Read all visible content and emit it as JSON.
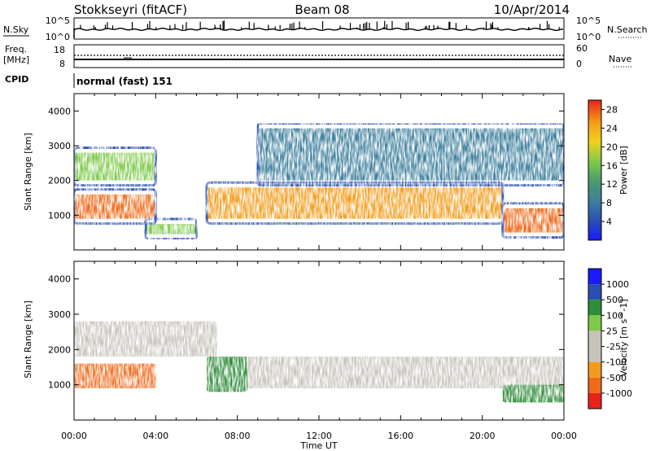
{
  "header": {
    "station": "Stokkseyri (fitACF)",
    "beam": "Beam 08",
    "date": "10/Apr/2014"
  },
  "noise_panel": {
    "left_label": "N.Sky",
    "right_label": "N.Search",
    "left_ticks": [
      "10^5",
      "10^0"
    ],
    "right_ticks": [
      "10^5",
      "10^0"
    ]
  },
  "freq_panel": {
    "left_label_line1": "Freq.",
    "left_label_line2": "[MHz]",
    "left_ticks": [
      "18",
      "8"
    ],
    "right_label": "Nave",
    "right_ticks": [
      "60",
      "0"
    ]
  },
  "cpid_panel": {
    "label": "CPID",
    "program": "normal (fast) 151"
  },
  "colors": {
    "power_scale": [
      "#1a1aff",
      "#2a4fb0",
      "#3d7f9c",
      "#4a9b6e",
      "#7ec94a",
      "#f0d21e",
      "#f39c1b",
      "#f06a1a",
      "#e8231a"
    ],
    "velocity_scale": [
      "#e8231a",
      "#f06a1a",
      "#f39c1b",
      "#c8c4bc",
      "#c8c4bc",
      "#7ec94a",
      "#2f8c3a",
      "#2a4fb0",
      "#1a1aff"
    ],
    "ground_scatter": "#c8c4bc"
  },
  "chart_data": [
    {
      "type": "heatmap",
      "title": "",
      "xlabel": "Time UT",
      "ylabel": "Slant Range [km]",
      "xlim": [
        "00:00",
        "24:00"
      ],
      "ylim": [
        0,
        4500
      ],
      "x_ticks": [
        "00:00",
        "04:00",
        "08:00",
        "12:00",
        "16:00",
        "20:00",
        "00:00"
      ],
      "y_ticks": [
        1000,
        2000,
        3000,
        4000
      ],
      "colorbar": {
        "label": "Power [dB]",
        "ticks": [
          "28",
          "24",
          "20",
          "16",
          "12",
          "8",
          "4"
        ],
        "range": [
          0,
          30
        ]
      },
      "echo_regions": [
        {
          "name": "near-range band",
          "t_start_h": 0.0,
          "t_end_h": 4.0,
          "range_km": [
            900,
            1600
          ],
          "power_db": 28
        },
        {
          "name": "upper early band",
          "t_start_h": 0.0,
          "t_end_h": 4.0,
          "range_km": [
            2000,
            2800
          ],
          "power_db": 16
        },
        {
          "name": "low patch",
          "t_start_h": 3.5,
          "t_end_h": 6.0,
          "range_km": [
            450,
            750
          ],
          "power_db": 14
        },
        {
          "name": "main trough band",
          "t_start_h": 6.5,
          "t_end_h": 21.0,
          "range_km": [
            900,
            1800
          ],
          "power_db": 24
        },
        {
          "name": "late low band",
          "t_start_h": 21.0,
          "t_end_h": 24.0,
          "range_km": [
            500,
            1200
          ],
          "power_db": 28
        },
        {
          "name": "far-range scatter",
          "t_start_h": 9.0,
          "t_end_h": 24.0,
          "range_km": [
            2000,
            3500
          ],
          "power_db": 8
        }
      ]
    },
    {
      "type": "heatmap",
      "title": "",
      "xlabel": "Time UT",
      "ylabel": "Slant Range [km]",
      "xlim": [
        "00:00",
        "24:00"
      ],
      "ylim": [
        0,
        4500
      ],
      "x_ticks": [
        "00:00",
        "04:00",
        "08:00",
        "12:00",
        "16:00",
        "20:00",
        "00:00"
      ],
      "y_ticks": [
        1000,
        2000,
        3000,
        4000
      ],
      "colorbar": {
        "label": "Velocity [m s^-1]",
        "ticks": [
          "1000",
          "500",
          "100",
          "25",
          "-25",
          "-100",
          "-500",
          "-1000"
        ],
        "range": [
          -1000,
          1000
        ]
      },
      "echo_regions": [
        {
          "name": "near-range mixed flow",
          "t_start_h": 0.0,
          "t_end_h": 4.0,
          "range_km": [
            900,
            1600
          ],
          "velocity_ms": -300
        },
        {
          "name": "ground scatter band",
          "t_start_h": 6.5,
          "t_end_h": 24.0,
          "range_km": [
            900,
            1800
          ],
          "velocity_ms": 0
        },
        {
          "name": "early ground scatter",
          "t_start_h": 0.0,
          "t_end_h": 7.0,
          "range_km": [
            1800,
            2800
          ],
          "velocity_ms": 0
        },
        {
          "name": "post-dawn positive flow",
          "t_start_h": 6.5,
          "t_end_h": 8.5,
          "range_km": [
            800,
            1800
          ],
          "velocity_ms": 150
        },
        {
          "name": "late positive patch",
          "t_start_h": 21.0,
          "t_end_h": 24.0,
          "range_km": [
            500,
            1000
          ],
          "velocity_ms": 120
        }
      ]
    }
  ]
}
